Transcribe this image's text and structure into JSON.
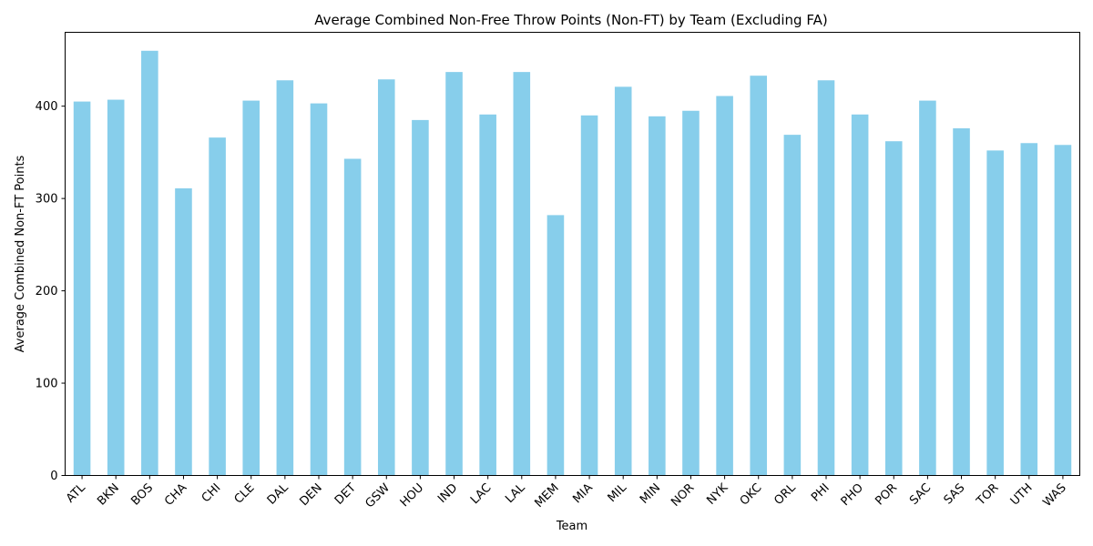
{
  "chart_data": {
    "type": "bar",
    "title": "Average Combined Non-Free Throw Points (Non-FT) by Team (Excluding FA)",
    "xlabel": "Team",
    "ylabel": "Average Combined Non-FT Points",
    "ylim": [
      0,
      480
    ],
    "yticks": [
      0,
      100,
      200,
      300,
      400
    ],
    "grid": false,
    "legend": "none",
    "bar_color": "#87CEEB",
    "categories": [
      "ATL",
      "BKN",
      "BOS",
      "CHA",
      "CHI",
      "CLE",
      "DAL",
      "DEN",
      "DET",
      "GSW",
      "HOU",
      "IND",
      "LAC",
      "LAL",
      "MEM",
      "MIA",
      "MIL",
      "MIN",
      "NOR",
      "NYK",
      "OKC",
      "ORL",
      "PHI",
      "PHO",
      "POR",
      "SAC",
      "SAS",
      "TOR",
      "UTH",
      "WAS"
    ],
    "values": [
      405,
      407,
      460,
      311,
      366,
      406,
      428,
      403,
      343,
      429,
      385,
      437,
      391,
      437,
      282,
      390,
      421,
      389,
      395,
      411,
      433,
      369,
      428,
      391,
      362,
      406,
      376,
      352,
      360,
      358
    ]
  }
}
